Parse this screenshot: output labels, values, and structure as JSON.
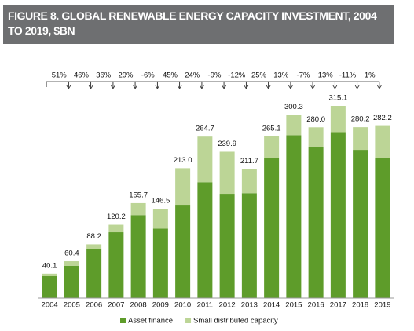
{
  "chart_data": {
    "type": "stacked_bar",
    "title": "FIGURE 8. GLOBAL RENEWABLE ENERGY CAPACITY INVESTMENT, 2004 TO 2019, $BN",
    "categories": [
      "2004",
      "2005",
      "2006",
      "2007",
      "2008",
      "2009",
      "2010",
      "2011",
      "2012",
      "2013",
      "2014",
      "2015",
      "2016",
      "2017",
      "2018",
      "2019"
    ],
    "series": [
      {
        "name": "Asset finance",
        "color": "#5e9c2a",
        "values": [
          36,
          53,
          81,
          108,
          136,
          114,
          153,
          190,
          171,
          172,
          229,
          267,
          248,
          272,
          243,
          230
        ]
      },
      {
        "name": "Small distributed capacity",
        "color": "#bcd596",
        "values": [
          4.1,
          7.4,
          7.2,
          12.2,
          19.7,
          32.5,
          60,
          74.7,
          68.9,
          39.7,
          36.1,
          33.3,
          32,
          43.1,
          37.2,
          52.2
        ]
      }
    ],
    "value_labels": [
      "40.1",
      "60.4",
      "88.2",
      "120.2",
      "155.7",
      "146.5",
      "213.0",
      "264.7",
      "239.9",
      "211.7",
      "265.1",
      "300.3",
      "280.0",
      "315.1",
      "280.2",
      "282.2"
    ],
    "growth_labels": [
      "51%",
      "46%",
      "36%",
      "29%",
      "-6%",
      "45%",
      "24%",
      "-9%",
      "-12%",
      "25%",
      "13%",
      "-7%",
      "13%",
      "-11%",
      "1%"
    ]
  }
}
